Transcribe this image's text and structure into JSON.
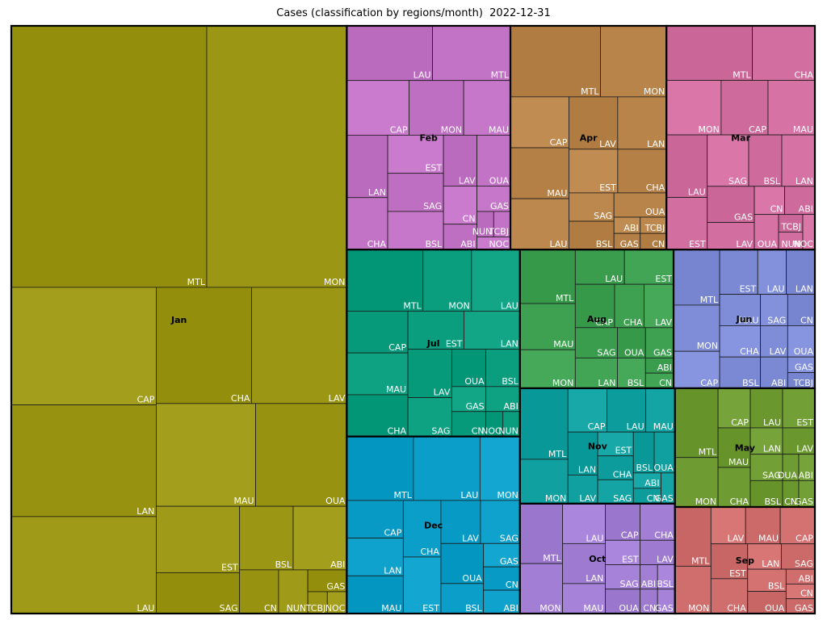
{
  "chart_data": {
    "type": "treemap",
    "title": "Cases (classification by regions/month)  2022-12-31",
    "months": [
      {
        "name": "Jan",
        "color": "#9b9613",
        "regions": [
          {
            "name": "MTL",
            "value": 120
          },
          {
            "name": "MON",
            "value": 86
          },
          {
            "name": "CAP",
            "value": 40
          },
          {
            "name": "LAN",
            "value": 38
          },
          {
            "name": "CHA",
            "value": 26
          },
          {
            "name": "LAV",
            "value": 26
          },
          {
            "name": "LAU",
            "value": 33
          },
          {
            "name": "MAU",
            "value": 24
          },
          {
            "name": "OUA",
            "value": 22
          },
          {
            "name": "EST",
            "value": 13
          },
          {
            "name": "SAG",
            "value": 8
          },
          {
            "name": "BSL",
            "value": 8
          },
          {
            "name": "ABI",
            "value": 8
          },
          {
            "name": "CN",
            "value": 4
          },
          {
            "name": "GAS",
            "value": 2
          },
          {
            "name": "NUN",
            "value": 3
          },
          {
            "name": "TCBJ",
            "value": 1
          },
          {
            "name": "NOC",
            "value": 1
          }
        ]
      },
      {
        "name": "Apr",
        "color": "#b8844a",
        "regions": [
          {
            "name": "MTL",
            "value": 15
          },
          {
            "name": "MON",
            "value": 11
          },
          {
            "name": "CAP",
            "value": 7
          },
          {
            "name": "MAU",
            "value": 7
          },
          {
            "name": "LAU",
            "value": 7
          },
          {
            "name": "EST",
            "value": 5
          },
          {
            "name": "CHA",
            "value": 5
          },
          {
            "name": "LAV",
            "value": 6
          },
          {
            "name": "LAN",
            "value": 6
          },
          {
            "name": "SAG",
            "value": 3
          },
          {
            "name": "BSL",
            "value": 3
          },
          {
            "name": "OUA",
            "value": 3
          },
          {
            "name": "ABI",
            "value": 1
          },
          {
            "name": "GAS",
            "value": 1
          },
          {
            "name": "TCBJ",
            "value": 1
          },
          {
            "name": "CN",
            "value": 1
          }
        ]
      },
      {
        "name": "Feb",
        "color": "#c273c5",
        "regions": [
          {
            "name": "MTL",
            "value": 10
          },
          {
            "name": "CAP",
            "value": 8
          },
          {
            "name": "MON",
            "value": 7
          },
          {
            "name": "LAU",
            "value": 11
          },
          {
            "name": "CHA",
            "value": 5
          },
          {
            "name": "MAU",
            "value": 6
          },
          {
            "name": "EST",
            "value": 5
          },
          {
            "name": "LAN",
            "value": 6
          },
          {
            "name": "SAG",
            "value": 5
          },
          {
            "name": "BSL",
            "value": 5
          },
          {
            "name": "LAV",
            "value": 4
          },
          {
            "name": "OUA",
            "value": 4
          },
          {
            "name": "CN",
            "value": 3
          },
          {
            "name": "ABI",
            "value": 2
          },
          {
            "name": "GAS",
            "value": 2
          },
          {
            "name": "NUN",
            "value": 1
          },
          {
            "name": "TCBJ",
            "value": 1
          },
          {
            "name": "NOC",
            "value": 1
          }
        ]
      },
      {
        "name": "Jul",
        "color": "#0a9e7f",
        "regions": [
          {
            "name": "MTL",
            "value": 11
          },
          {
            "name": "MON",
            "value": 7
          },
          {
            "name": "CAP",
            "value": 6
          },
          {
            "name": "LAU",
            "value": 7
          },
          {
            "name": "MAU",
            "value": 6
          },
          {
            "name": "EST",
            "value": 5
          },
          {
            "name": "CHA",
            "value": 6
          },
          {
            "name": "LAN",
            "value": 5
          },
          {
            "name": "LAV",
            "value": 5
          },
          {
            "name": "SAG",
            "value": 4
          },
          {
            "name": "OUA",
            "value": 3
          },
          {
            "name": "GAS",
            "value": 2
          },
          {
            "name": "BSL",
            "value": 3
          },
          {
            "name": "CN",
            "value": 2
          },
          {
            "name": "ABI",
            "value": 2
          },
          {
            "name": "NOC",
            "value": 1
          },
          {
            "name": "NUN",
            "value": 1
          }
        ]
      },
      {
        "name": "Mar",
        "color": "#d26ea0",
        "regions": [
          {
            "name": "MTL",
            "value": 11
          },
          {
            "name": "MON",
            "value": 7
          },
          {
            "name": "CAP",
            "value": 6
          },
          {
            "name": "CHA",
            "value": 8
          },
          {
            "name": "MAU",
            "value": 6
          },
          {
            "name": "LAU",
            "value": 6
          },
          {
            "name": "EST",
            "value": 5
          },
          {
            "name": "SAG",
            "value": 5
          },
          {
            "name": "BSL",
            "value": 4
          },
          {
            "name": "LAN",
            "value": 4
          },
          {
            "name": "GAS",
            "value": 4
          },
          {
            "name": "CN",
            "value": 2
          },
          {
            "name": "ABI",
            "value": 2
          },
          {
            "name": "LAV",
            "value": 3
          },
          {
            "name": "OUA",
            "value": 2
          },
          {
            "name": "TCBJ",
            "value": 1
          },
          {
            "name": "NUN",
            "value": 1
          },
          {
            "name": "NOC",
            "value": 1
          }
        ]
      },
      {
        "name": "Dec",
        "color": "#0b9ec9",
        "regions": [
          {
            "name": "MTL",
            "value": 10
          },
          {
            "name": "MON",
            "value": 6
          },
          {
            "name": "CAP",
            "value": 5
          },
          {
            "name": "LAU",
            "value": 10
          },
          {
            "name": "LAN",
            "value": 5
          },
          {
            "name": "MAU",
            "value": 5
          },
          {
            "name": "CHA",
            "value": 5
          },
          {
            "name": "EST",
            "value": 5
          },
          {
            "name": "LAV",
            "value": 4
          },
          {
            "name": "SAG",
            "value": 4
          },
          {
            "name": "OUA",
            "value": 4
          },
          {
            "name": "BSL",
            "value": 3
          },
          {
            "name": "GAS",
            "value": 2
          },
          {
            "name": "CN",
            "value": 2
          },
          {
            "name": "ABI",
            "value": 2
          }
        ]
      },
      {
        "name": "Aug",
        "color": "#3ea151",
        "regions": [
          {
            "name": "MTL",
            "value": 7
          },
          {
            "name": "MON",
            "value": 5
          },
          {
            "name": "LAU",
            "value": 4
          },
          {
            "name": "EST",
            "value": 4
          },
          {
            "name": "CAP",
            "value": 4
          },
          {
            "name": "MAU",
            "value": 6
          },
          {
            "name": "CHA",
            "value": 3
          },
          {
            "name": "LAV",
            "value": 3
          },
          {
            "name": "SAG",
            "value": 3
          },
          {
            "name": "OUA",
            "value": 2
          },
          {
            "name": "GAS",
            "value": 2
          },
          {
            "name": "LAN",
            "value": 3
          },
          {
            "name": "BSL",
            "value": 2
          },
          {
            "name": "ABI",
            "value": 1
          },
          {
            "name": "CN",
            "value": 1
          }
        ]
      },
      {
        "name": "Jun",
        "color": "#7f8dd8",
        "regions": [
          {
            "name": "MTL",
            "value": 6
          },
          {
            "name": "MON",
            "value": 5
          },
          {
            "name": "CAP",
            "value": 4
          },
          {
            "name": "LAU",
            "value": 3
          },
          {
            "name": "LAN",
            "value": 3
          },
          {
            "name": "EST",
            "value": 4
          },
          {
            "name": "MAU",
            "value": 3
          },
          {
            "name": "CHA",
            "value": 3
          },
          {
            "name": "BSL",
            "value": 3
          },
          {
            "name": "SAG",
            "value": 2
          },
          {
            "name": "CN",
            "value": 2
          },
          {
            "name": "GAS",
            "value": 1
          },
          {
            "name": "LAV",
            "value": 2
          },
          {
            "name": "OUA",
            "value": 2
          },
          {
            "name": "ABI",
            "value": 2
          },
          {
            "name": "TCBJ",
            "value": 1
          }
        ]
      },
      {
        "name": "Oct",
        "color": "#a27fd4",
        "regions": [
          {
            "name": "MTL",
            "value": 6
          },
          {
            "name": "MON",
            "value": 5
          },
          {
            "name": "LAU",
            "value": 4
          },
          {
            "name": "MAU",
            "value": 3
          },
          {
            "name": "CAP",
            "value": 3
          },
          {
            "name": "LAN",
            "value": 4
          },
          {
            "name": "EST",
            "value": 2
          },
          {
            "name": "LAV",
            "value": 2
          },
          {
            "name": "CHA",
            "value": 3
          },
          {
            "name": "SAG",
            "value": 2
          },
          {
            "name": "OUA",
            "value": 2
          },
          {
            "name": "ABI",
            "value": 1
          },
          {
            "name": "BSL",
            "value": 1
          },
          {
            "name": "CN",
            "value": 1
          },
          {
            "name": "GAS",
            "value": 1
          }
        ]
      },
      {
        "name": "Nov",
        "color": "#10a0a0",
        "regions": [
          {
            "name": "MTL",
            "value": 8
          },
          {
            "name": "MON",
            "value": 5
          },
          {
            "name": "CAP",
            "value": 4
          },
          {
            "name": "LAU",
            "value": 4
          },
          {
            "name": "MAU",
            "value": 3
          },
          {
            "name": "LAV",
            "value": 2
          },
          {
            "name": "EST",
            "value": 2
          },
          {
            "name": "CHA",
            "value": 2
          },
          {
            "name": "SAG",
            "value": 2
          },
          {
            "name": "LAN",
            "value": 3
          },
          {
            "name": "BSL",
            "value": 2
          },
          {
            "name": "ABI",
            "value": 1
          },
          {
            "name": "OUA",
            "value": 2
          },
          {
            "name": "CN",
            "value": 1
          },
          {
            "name": "GAS",
            "value": 1
          }
        ]
      },
      {
        "name": "May",
        "color": "#6e9c33",
        "regions": [
          {
            "name": "MTL",
            "value": 7
          },
          {
            "name": "MON",
            "value": 5
          },
          {
            "name": "CAP",
            "value": 3
          },
          {
            "name": "LAU",
            "value": 3
          },
          {
            "name": "EST",
            "value": 3
          },
          {
            "name": "MAU",
            "value": 3
          },
          {
            "name": "LAN",
            "value": 2
          },
          {
            "name": "CHA",
            "value": 3
          },
          {
            "name": "LAV",
            "value": 2
          },
          {
            "name": "SAG",
            "value": 2
          },
          {
            "name": "BSL",
            "value": 2
          },
          {
            "name": "OUA",
            "value": 1
          },
          {
            "name": "ABI",
            "value": 1
          },
          {
            "name": "CN",
            "value": 1
          },
          {
            "name": "GAS",
            "value": 1
          }
        ]
      },
      {
        "name": "Sep",
        "color": "#d06e6e",
        "regions": [
          {
            "name": "MTL",
            "value": 5
          },
          {
            "name": "MON",
            "value": 4
          },
          {
            "name": "LAV",
            "value": 3
          },
          {
            "name": "MAU",
            "value": 3
          },
          {
            "name": "CAP",
            "value": 3
          },
          {
            "name": "EST",
            "value": 3
          },
          {
            "name": "CHA",
            "value": 3
          },
          {
            "name": "LAN",
            "value": 2
          },
          {
            "name": "SAG",
            "value": 2
          },
          {
            "name": "BSL",
            "value": 2
          },
          {
            "name": "OUA",
            "value": 2
          },
          {
            "name": "ABI",
            "value": 1
          },
          {
            "name": "CN",
            "value": 1
          },
          {
            "name": "GAS",
            "value": 1
          }
        ]
      }
    ]
  }
}
